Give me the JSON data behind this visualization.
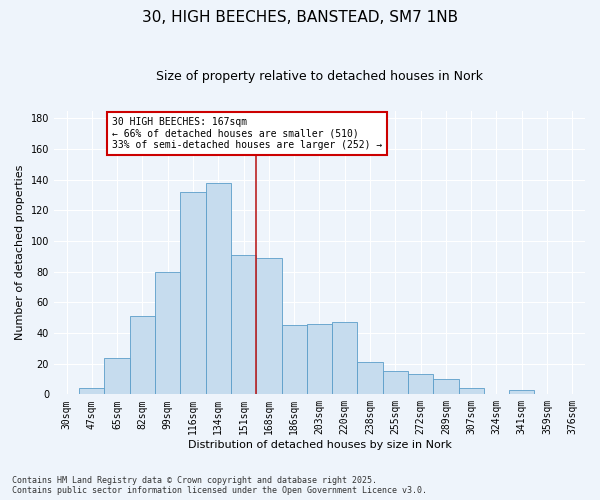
{
  "title": "30, HIGH BEECHES, BANSTEAD, SM7 1NB",
  "subtitle": "Size of property relative to detached houses in Nork",
  "xlabel": "Distribution of detached houses by size in Nork",
  "ylabel": "Number of detached properties",
  "bar_labels": [
    "30sqm",
    "47sqm",
    "65sqm",
    "82sqm",
    "99sqm",
    "116sqm",
    "134sqm",
    "151sqm",
    "168sqm",
    "186sqm",
    "203sqm",
    "220sqm",
    "238sqm",
    "255sqm",
    "272sqm",
    "289sqm",
    "307sqm",
    "324sqm",
    "341sqm",
    "359sqm",
    "376sqm"
  ],
  "bar_values": [
    0,
    4,
    24,
    51,
    80,
    132,
    138,
    91,
    89,
    45,
    46,
    47,
    21,
    15,
    13,
    10,
    4,
    0,
    3,
    0,
    0
  ],
  "bar_color": "#c6dcee",
  "bar_edge_color": "#5b9ec9",
  "vline_color": "#bb2222",
  "annotation_title": "30 HIGH BEECHES: 167sqm",
  "annotation_line1": "← 66% of detached houses are smaller (510)",
  "annotation_line2": "33% of semi-detached houses are larger (252) →",
  "annotation_box_color": "#ffffff",
  "annotation_box_edge": "#cc0000",
  "ylim": [
    0,
    185
  ],
  "yticks": [
    0,
    20,
    40,
    60,
    80,
    100,
    120,
    140,
    160,
    180
  ],
  "footer_line1": "Contains HM Land Registry data © Crown copyright and database right 2025.",
  "footer_line2": "Contains public sector information licensed under the Open Government Licence v3.0.",
  "bg_color": "#eef4fb",
  "grid_color": "#ffffff",
  "title_fontsize": 11,
  "subtitle_fontsize": 9,
  "label_fontsize": 8,
  "tick_fontsize": 7,
  "annot_fontsize": 7,
  "footer_fontsize": 6
}
